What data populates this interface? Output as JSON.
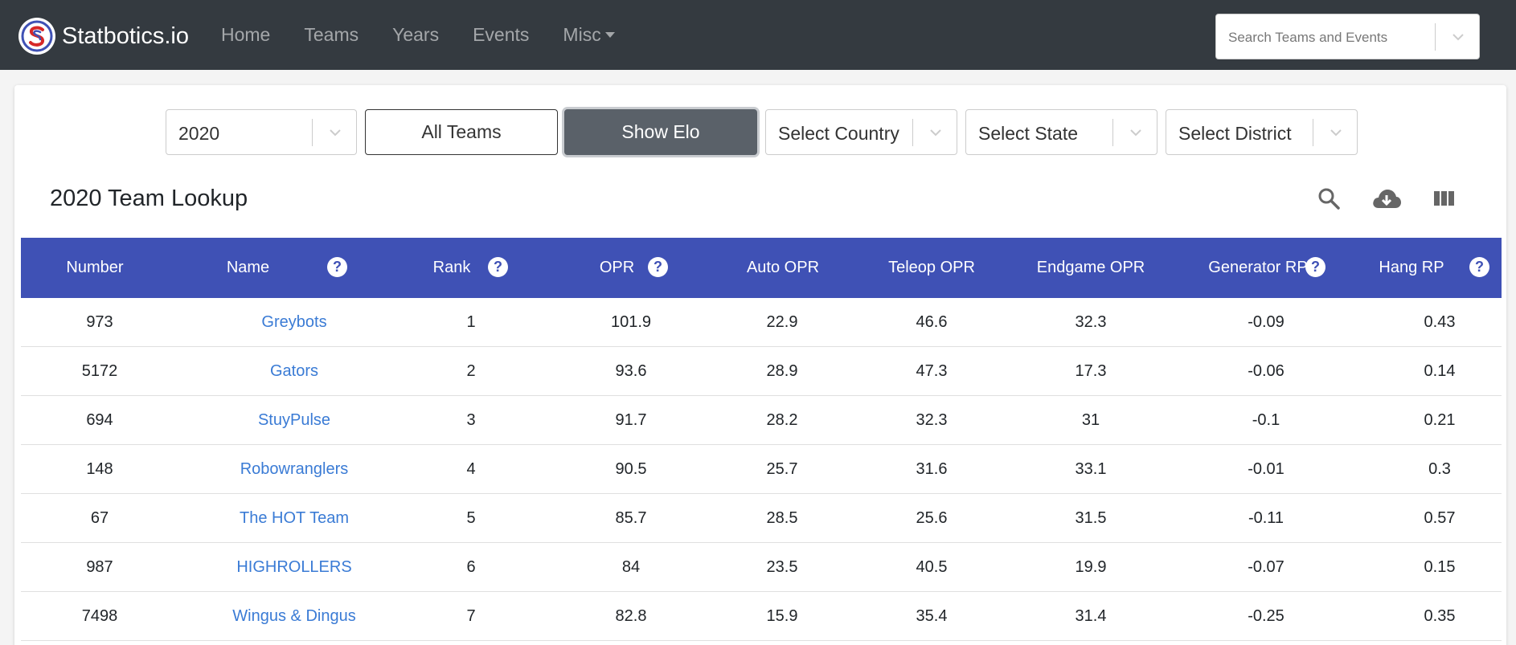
{
  "navbar": {
    "brand": "Statbotics.io",
    "links": [
      "Home",
      "Teams",
      "Years",
      "Events",
      "Misc"
    ],
    "search_placeholder": "Search Teams and Events"
  },
  "filters": {
    "year": "2020",
    "all_teams": "All Teams",
    "show_elo": "Show Elo",
    "country": "Select Country",
    "state": "Select State",
    "district": "Select District"
  },
  "title": "2020 Team Lookup",
  "table": {
    "columns": [
      "Number",
      "Name",
      "Rank",
      "OPR",
      "Auto OPR",
      "Teleop OPR",
      "Endgame OPR",
      "Generator RP",
      "Hang RP"
    ],
    "rows": [
      [
        "973",
        "Greybots",
        "1",
        "101.9",
        "22.9",
        "46.6",
        "32.3",
        "-0.09",
        "0.43"
      ],
      [
        "5172",
        "Gators",
        "2",
        "93.6",
        "28.9",
        "47.3",
        "17.3",
        "-0.06",
        "0.14"
      ],
      [
        "694",
        "StuyPulse",
        "3",
        "91.7",
        "28.2",
        "32.3",
        "31",
        "-0.1",
        "0.21"
      ],
      [
        "148",
        "Robowranglers",
        "4",
        "90.5",
        "25.7",
        "31.6",
        "33.1",
        "-0.01",
        "0.3"
      ],
      [
        "67",
        "The HOT Team",
        "5",
        "85.7",
        "28.5",
        "25.6",
        "31.5",
        "-0.11",
        "0.57"
      ],
      [
        "987",
        "HIGHROLLERS",
        "6",
        "84",
        "23.5",
        "40.5",
        "19.9",
        "-0.07",
        "0.15"
      ],
      [
        "7498",
        "Wingus & Dingus",
        "7",
        "82.8",
        "15.9",
        "35.4",
        "31.4",
        "-0.25",
        "0.35"
      ]
    ]
  },
  "help_glyph": "?",
  "colors": {
    "navbar": "#343a40",
    "table_header": "#3f51b5",
    "link": "#3a7bd5"
  }
}
